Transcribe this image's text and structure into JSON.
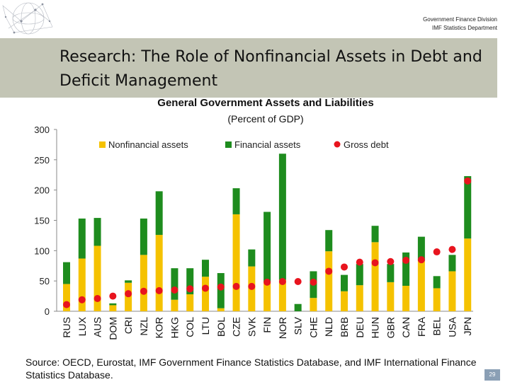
{
  "header": {
    "division": "Government Finance Division",
    "department": "IMF Statistics Department"
  },
  "slide": {
    "title_lead": "Research:",
    "title_rest": " The Role of Nonfinancial Assets in Debt and Deficit Management",
    "source": "Source: OECD, Eurostat, IMF Government Finance Statistics Database, and IMF International Finance Statistics Database.",
    "page_number": "29"
  },
  "chart_data": {
    "type": "bar",
    "title": "General Government Assets and Liabilities",
    "subtitle": "(Percent of GDP)",
    "ylim": [
      0,
      300
    ],
    "yticks": [
      "0",
      "50",
      "100",
      "150",
      "200",
      "250",
      "300"
    ],
    "legend_position": "top",
    "categories": [
      "RUS",
      "LUX",
      "AUS",
      "DOM",
      "CRI",
      "NZL",
      "KOR",
      "HKG",
      "COL",
      "LTU",
      "BOL",
      "CZE",
      "SVK",
      "FIN",
      "NOR",
      "SLV",
      "CHE",
      "NLD",
      "BRB",
      "DEU",
      "HUN",
      "GBR",
      "CAN",
      "FRA",
      "BEL",
      "USA",
      "JPN"
    ],
    "series": [
      {
        "name": "Nonfinancial assets",
        "kind": "bar",
        "color": "#f5c200",
        "values": [
          45,
          87,
          108,
          10,
          47,
          93,
          126,
          19,
          28,
          57,
          5,
          160,
          74,
          48,
          52,
          0,
          22,
          99,
          33,
          43,
          114,
          48,
          42,
          83,
          38,
          66,
          120
        ]
      },
      {
        "name": "Financial assets",
        "kind": "bar",
        "color": "#1e8c1e",
        "values": [
          36,
          66,
          46,
          3,
          4,
          60,
          72,
          52,
          43,
          28,
          58,
          43,
          28,
          116,
          208,
          12,
          44,
          35,
          27,
          35,
          27,
          30,
          55,
          40,
          20,
          27,
          103
        ]
      },
      {
        "name": "Gross debt",
        "kind": "marker",
        "color": "#e8141e",
        "values": [
          11,
          19,
          21,
          25,
          29,
          33,
          34,
          35,
          37,
          38,
          40,
          41,
          41,
          48,
          49,
          49,
          48,
          66,
          73,
          81,
          80,
          82,
          84,
          85,
          98,
          102,
          215
        ]
      }
    ]
  }
}
